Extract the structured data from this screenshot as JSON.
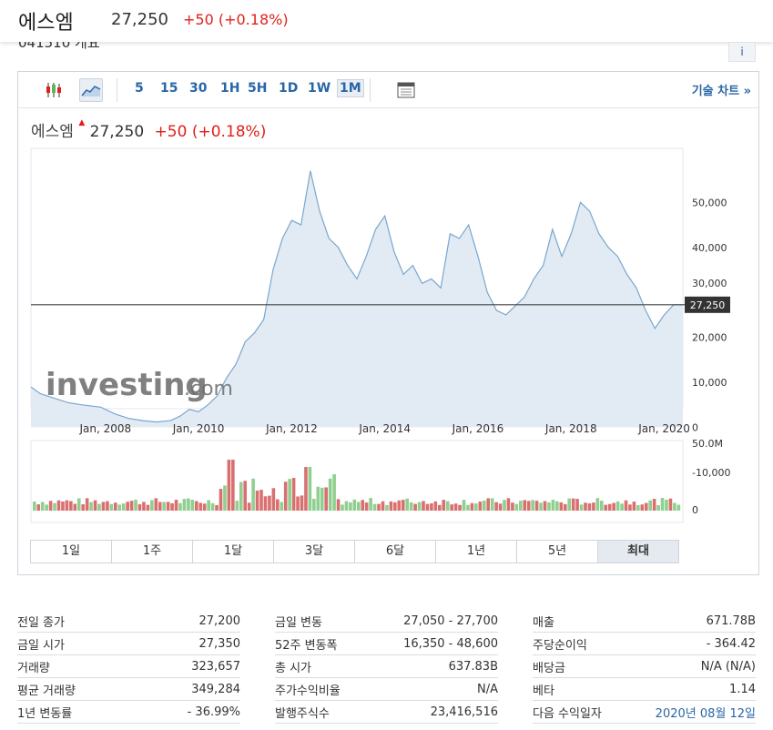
{
  "header": {
    "name": "에스엠",
    "price": "27,250",
    "change": "+50 (+0.18%)",
    "sub_peek": "041510 개요"
  },
  "info_button": "i",
  "toolbar": {
    "timeframes": [
      "5",
      "15",
      "30",
      "1H",
      "5H",
      "1D",
      "1W",
      "1M"
    ],
    "active_timeframe": "1M",
    "technical_label": "기술 차트 »"
  },
  "legend": {
    "name": "에스엠",
    "price": "27,250",
    "change": "+50 (+0.18%)"
  },
  "chart_data": {
    "type": "area",
    "title": "",
    "x_tick_labels": [
      "Jan, 2008",
      "Jan, 2010",
      "Jan, 2012",
      "Jan, 2014",
      "Jan, 2016",
      "Jan, 2018",
      "Jan, 2020"
    ],
    "y_tick_labels": [
      "50,000",
      "40,000",
      "30,000",
      "20,000",
      "10,000",
      "0",
      "-10,000"
    ],
    "ylim": [
      -10000,
      62000
    ],
    "current_price_label": "27,250",
    "current_price": 27250,
    "series": [
      {
        "x": [
          2006.5,
          2006.7,
          2007.0,
          2007.3,
          2007.6,
          2008.0,
          2008.3,
          2008.6,
          2008.9,
          2009.2,
          2009.5,
          2009.7,
          2009.9,
          2010.1,
          2010.3,
          2010.5,
          2010.7,
          2010.9,
          2011.1,
          2011.3,
          2011.5,
          2011.7,
          2011.9,
          2012.1,
          2012.3,
          2012.5,
          2012.7,
          2012.9,
          2013.1,
          2013.3,
          2013.5,
          2013.7,
          2013.9,
          2014.1,
          2014.3,
          2014.5,
          2014.7,
          2014.9,
          2015.1,
          2015.3,
          2015.5,
          2015.7,
          2015.9,
          2016.1,
          2016.3,
          2016.5,
          2016.7,
          2016.9,
          2017.1,
          2017.3,
          2017.5,
          2017.7,
          2017.9,
          2018.1,
          2018.3,
          2018.5,
          2018.7,
          2018.9,
          2019.1,
          2019.3,
          2019.5,
          2019.7,
          2019.9,
          2020.1,
          2020.3,
          2020.5
        ],
        "y": [
          9000,
          7500,
          6500,
          5500,
          5000,
          4500,
          3000,
          2000,
          1500,
          1200,
          1500,
          2500,
          4000,
          3500,
          5000,
          7000,
          11000,
          14000,
          19000,
          21000,
          24000,
          35000,
          42000,
          46000,
          45000,
          57000,
          48000,
          42000,
          40000,
          36000,
          33000,
          38000,
          44000,
          47000,
          39000,
          34000,
          36000,
          32000,
          33000,
          31000,
          43000,
          42000,
          45000,
          38000,
          30000,
          26000,
          25000,
          27000,
          29000,
          33000,
          36000,
          44000,
          38000,
          43000,
          50000,
          48000,
          43000,
          40000,
          38000,
          34000,
          31000,
          26000,
          22000,
          25000,
          27250,
          27250
        ]
      }
    ],
    "volume_max_label": "50.0M",
    "volume_zero_label": "0"
  },
  "watermark": {
    "brand": "investing",
    "suffix": ".com"
  },
  "periods": [
    "1일",
    "1주",
    "1달",
    "3달",
    "6달",
    "1년",
    "5년",
    "최대"
  ],
  "active_period": "최대",
  "stats": {
    "col1": [
      {
        "label": "전일 종가",
        "value": "27,200"
      },
      {
        "label": "금일 시가",
        "value": "27,350"
      },
      {
        "label": "거래량",
        "value": "323,657"
      },
      {
        "label": "평균 거래량",
        "value": "349,284"
      },
      {
        "label": "1년 변동률",
        "value": "- 36.99%"
      }
    ],
    "col2": [
      {
        "label": "금일 변동",
        "value": "27,050 - 27,700"
      },
      {
        "label": "52주 변동폭",
        "value": "16,350 - 48,600"
      },
      {
        "label": "총 시가",
        "value": "637.83B"
      },
      {
        "label": "주가수익비율",
        "value": "N/A"
      },
      {
        "label": "발행주식수",
        "value": "23,416,516"
      }
    ],
    "col3": [
      {
        "label": "매출",
        "value": "671.78B"
      },
      {
        "label": "주당순이익",
        "value": "- 364.42"
      },
      {
        "label": "배당금",
        "value": "N/A (N/A)"
      },
      {
        "label": "베타",
        "value": "1.14"
      },
      {
        "label": "다음 수익일자",
        "value": "2020년 08월 12일",
        "link": true
      }
    ]
  },
  "colors": {
    "up": "#e0201b",
    "line": "#7aa6cf",
    "area": "#e2ebf3",
    "vol_up": "#8fcf8f",
    "vol_down": "#d97070",
    "link": "#2a66a6"
  }
}
